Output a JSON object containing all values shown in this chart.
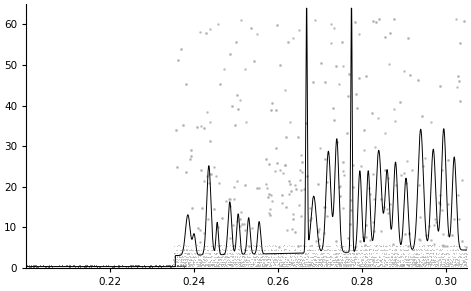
{
  "xlim": [
    0.2,
    0.305
  ],
  "ylim": [
    0,
    65
  ],
  "xticks": [
    0.22,
    0.24,
    0.26,
    0.28,
    0.3
  ],
  "yticks": [
    0,
    10,
    20,
    30,
    40,
    50,
    60
  ],
  "line_color": "#000000",
  "dot_color": "#aaaaaa",
  "bg_color": "#ffffff",
  "figsize": [
    4.71,
    2.91
  ],
  "dpi": 100
}
